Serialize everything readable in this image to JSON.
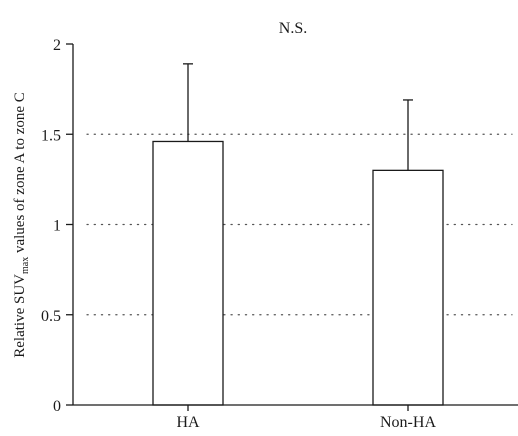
{
  "chart_data": {
    "type": "bar",
    "categories": [
      "HA",
      "Non-HA"
    ],
    "values": [
      1.46,
      1.3
    ],
    "errors": [
      0.43,
      0.39
    ],
    "annotation": "N.S.",
    "ylabel": {
      "prefix": "Relative SUV",
      "subscript": "max",
      "suffix": " values of zone A to zone C"
    },
    "ylim": [
      0,
      2
    ],
    "yticks": [
      {
        "value": 0,
        "label": "0"
      },
      {
        "value": 0.5,
        "label": "0.5"
      },
      {
        "value": 1,
        "label": "1"
      },
      {
        "value": 1.5,
        "label": "1.5"
      },
      {
        "value": 2,
        "label": "2"
      }
    ],
    "grid": "horizontal-dotted",
    "colors": {
      "bar_fill": "#ffffff",
      "stroke": "#1a1a1a",
      "grid": "#555555"
    }
  }
}
